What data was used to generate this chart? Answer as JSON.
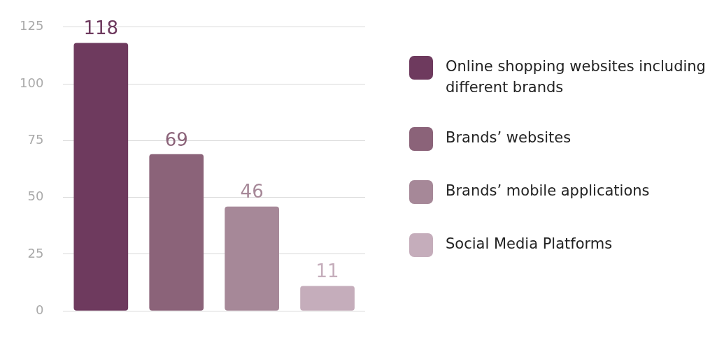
{
  "chart_data": {
    "type": "bar",
    "categories": [
      null,
      null,
      null,
      null
    ],
    "series": [
      {
        "name": "Online shopping websites including different brands",
        "color": "#6e3a5e",
        "values": [
          118,
          null,
          null,
          null
        ]
      },
      {
        "name": "Brands’ websites",
        "color": "#8b6379",
        "values": [
          null,
          69,
          null,
          null
        ]
      },
      {
        "name": "Brands’ mobile applications",
        "color": "#a68898",
        "values": [
          null,
          null,
          46,
          null
        ]
      },
      {
        "name": "Social Media Platforms",
        "color": "#c5adbb",
        "values": [
          null,
          null,
          null,
          11
        ]
      }
    ],
    "ylim": [
      0,
      125
    ],
    "yticks": [
      0,
      25,
      50,
      75,
      100,
      125
    ],
    "grid": "y",
    "legend": "right",
    "data_labels": true
  }
}
